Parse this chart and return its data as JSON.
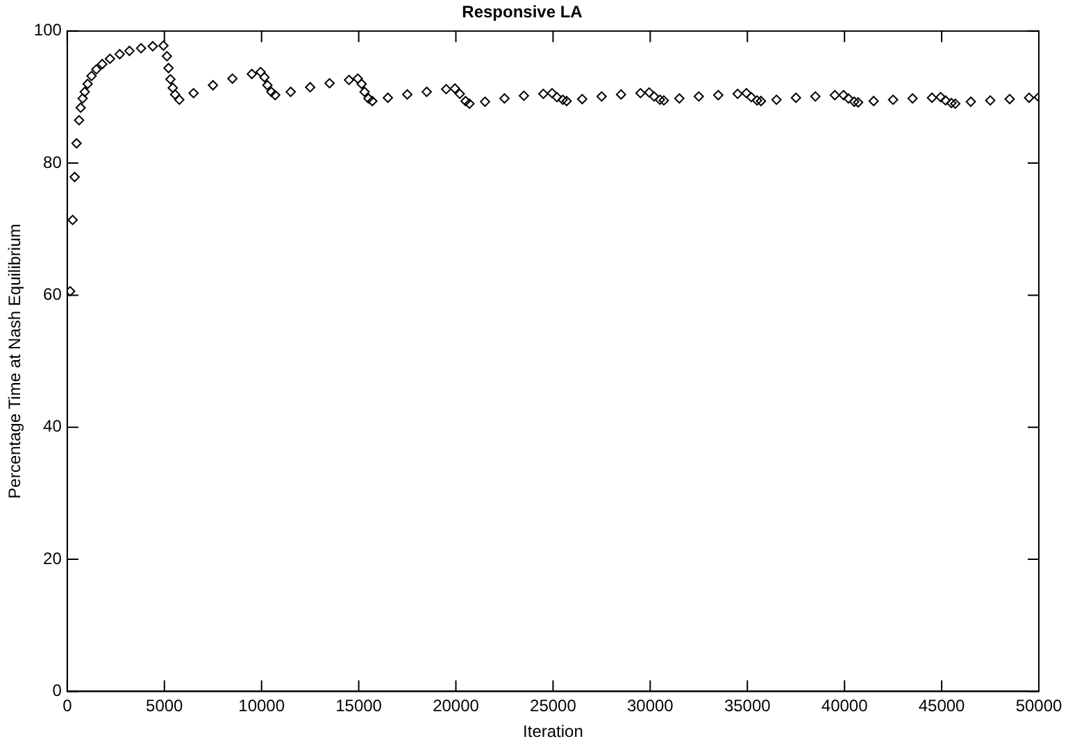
{
  "chart_data": {
    "type": "scatter",
    "title": "Responsive LA",
    "xlabel": "Iteration",
    "ylabel": "Percentage Time at Nash Equilibrium",
    "xlim": [
      0,
      50000
    ],
    "xticks": [
      0,
      5000,
      10000,
      15000,
      20000,
      25000,
      30000,
      35000,
      40000,
      45000,
      50000
    ],
    "ylim": [
      0,
      100
    ],
    "yticks": [
      0,
      20,
      40,
      60,
      80,
      100
    ],
    "grid": false,
    "legend": false,
    "marker": "diamond",
    "series": [
      {
        "color": "#000000",
        "x": [
          150,
          280,
          380,
          480,
          610,
          690,
          790,
          900,
          1050,
          1250,
          1500,
          1800,
          2200,
          2700,
          3200,
          3800,
          4400,
          4950,
          5130,
          5210,
          5310,
          5430,
          5550,
          5770,
          6500,
          7500,
          8500,
          9500,
          9950,
          10150,
          10300,
          10500,
          10700,
          11500,
          12500,
          13500,
          14500,
          14950,
          15150,
          15300,
          15500,
          15700,
          16500,
          17500,
          18500,
          19500,
          19950,
          20200,
          20500,
          20700,
          21500,
          22500,
          23500,
          24500,
          24950,
          25200,
          25500,
          25700,
          26500,
          27500,
          28500,
          29500,
          29950,
          30200,
          30500,
          30700,
          31500,
          32500,
          33500,
          34500,
          34950,
          35200,
          35500,
          35700,
          36500,
          37500,
          38500,
          39500,
          39950,
          40200,
          40500,
          40700,
          41500,
          42500,
          43500,
          44500,
          44950,
          45200,
          45500,
          45700,
          46500,
          47500,
          48500,
          49500,
          50000
        ],
        "values": [
          60.6,
          71.4,
          77.9,
          83.0,
          86.5,
          88.4,
          89.8,
          90.8,
          92.0,
          93.2,
          94.2,
          95.0,
          95.8,
          96.5,
          97.0,
          97.4,
          97.7,
          97.8,
          96.2,
          94.4,
          92.7,
          91.4,
          90.4,
          89.6,
          90.6,
          91.8,
          92.8,
          93.5,
          93.8,
          93.0,
          91.8,
          90.8,
          90.3,
          90.8,
          91.5,
          92.1,
          92.6,
          92.8,
          92.0,
          90.8,
          89.8,
          89.4,
          89.9,
          90.4,
          90.8,
          91.2,
          91.3,
          90.5,
          89.4,
          89.0,
          89.3,
          89.8,
          90.2,
          90.5,
          90.6,
          90.0,
          89.6,
          89.4,
          89.7,
          90.1,
          90.4,
          90.6,
          90.7,
          90.1,
          89.6,
          89.5,
          89.8,
          90.1,
          90.3,
          90.5,
          90.6,
          90.0,
          89.5,
          89.4,
          89.6,
          89.9,
          90.1,
          90.3,
          90.3,
          89.8,
          89.3,
          89.2,
          89.4,
          89.6,
          89.8,
          89.9,
          90.0,
          89.5,
          89.1,
          89.0,
          89.3,
          89.5,
          89.7,
          89.9,
          90.0
        ]
      }
    ]
  }
}
